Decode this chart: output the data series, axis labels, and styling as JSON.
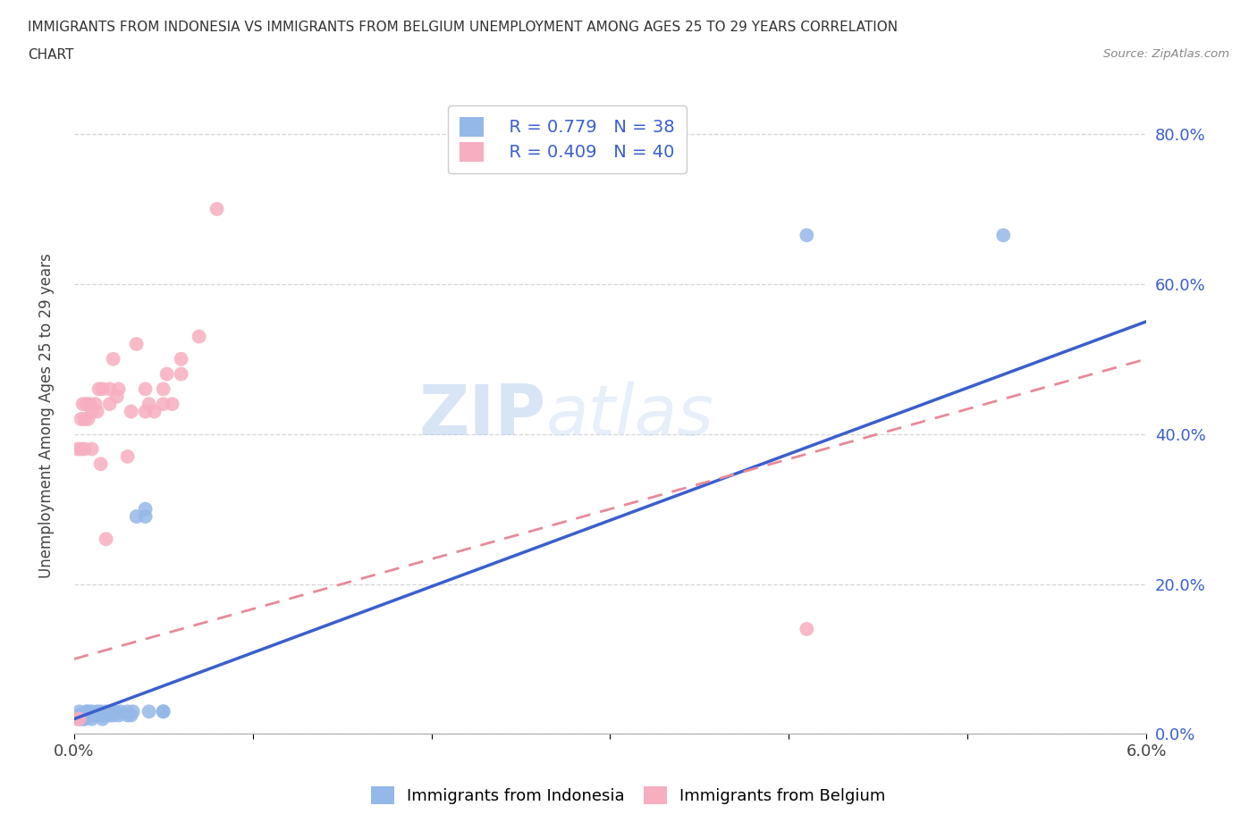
{
  "title_line1": "IMMIGRANTS FROM INDONESIA VS IMMIGRANTS FROM BELGIUM UNEMPLOYMENT AMONG AGES 25 TO 29 YEARS CORRELATION",
  "title_line2": "CHART",
  "source": "Source: ZipAtlas.com",
  "ylabel": "Unemployment Among Ages 25 to 29 years",
  "xmin": 0.0,
  "xmax": 0.06,
  "ymin": 0.0,
  "ymax": 0.85,
  "xticks": [
    0.0,
    0.01,
    0.02,
    0.03,
    0.04,
    0.05,
    0.06
  ],
  "xtick_labels": [
    "0.0%",
    "",
    "",
    "",
    "",
    "",
    "6.0%"
  ],
  "yticks": [
    0.0,
    0.2,
    0.4,
    0.6,
    0.8
  ],
  "ytick_labels": [
    "0.0%",
    "20.0%",
    "40.0%",
    "60.0%",
    "80.0%"
  ],
  "indonesia_color": "#94b8e8",
  "belgium_color": "#f7aec0",
  "indonesia_line_color": "#3a5fcd",
  "belgium_line_color": "#e8899a",
  "indonesia_R": 0.779,
  "indonesia_N": 38,
  "belgium_R": 0.409,
  "belgium_N": 40,
  "watermark_zip": "ZIP",
  "watermark_atlas": "atlas",
  "indo_x": [
    0.0003,
    0.0003,
    0.0003,
    0.0005,
    0.0005,
    0.0006,
    0.0007,
    0.0008,
    0.0008,
    0.0009,
    0.001,
    0.001,
    0.001,
    0.0012,
    0.0013,
    0.0014,
    0.0015,
    0.0016,
    0.0017,
    0.0018,
    0.002,
    0.0021,
    0.0022,
    0.0023,
    0.0025,
    0.0026,
    0.003,
    0.003,
    0.0032,
    0.0033,
    0.0035,
    0.004,
    0.004,
    0.0042,
    0.005,
    0.005,
    0.041,
    0.052
  ],
  "indo_y": [
    0.02,
    0.025,
    0.03,
    0.02,
    0.025,
    0.02,
    0.03,
    0.025,
    0.03,
    0.025,
    0.02,
    0.025,
    0.03,
    0.025,
    0.03,
    0.025,
    0.03,
    0.02,
    0.025,
    0.03,
    0.025,
    0.03,
    0.025,
    0.03,
    0.025,
    0.03,
    0.025,
    0.03,
    0.025,
    0.03,
    0.29,
    0.29,
    0.3,
    0.03,
    0.03,
    0.03,
    0.665,
    0.665
  ],
  "belg_x": [
    0.0002,
    0.0002,
    0.0003,
    0.0004,
    0.0004,
    0.0005,
    0.0006,
    0.0006,
    0.0007,
    0.0008,
    0.0009,
    0.001,
    0.001,
    0.0012,
    0.0013,
    0.0014,
    0.0015,
    0.0016,
    0.0018,
    0.002,
    0.002,
    0.0022,
    0.0024,
    0.0025,
    0.003,
    0.0032,
    0.0035,
    0.004,
    0.004,
    0.0042,
    0.0045,
    0.005,
    0.005,
    0.0052,
    0.0055,
    0.006,
    0.006,
    0.007,
    0.008,
    0.041
  ],
  "belg_y": [
    0.02,
    0.38,
    0.02,
    0.38,
    0.42,
    0.44,
    0.38,
    0.42,
    0.44,
    0.42,
    0.44,
    0.38,
    0.43,
    0.44,
    0.43,
    0.46,
    0.36,
    0.46,
    0.26,
    0.44,
    0.46,
    0.5,
    0.45,
    0.46,
    0.37,
    0.43,
    0.52,
    0.43,
    0.46,
    0.44,
    0.43,
    0.44,
    0.46,
    0.48,
    0.44,
    0.48,
    0.5,
    0.53,
    0.7,
    0.14
  ]
}
